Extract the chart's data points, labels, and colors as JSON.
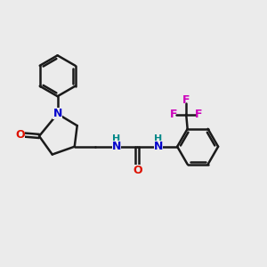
{
  "background_color": "#ebebeb",
  "bond_color": "#1a1a1a",
  "N_color": "#0000cc",
  "O_color": "#dd1100",
  "F_color": "#cc00bb",
  "H_color": "#008888",
  "line_width": 1.8,
  "figsize": [
    3.0,
    3.0
  ],
  "dpi": 100,
  "xlim": [
    0,
    10
  ],
  "ylim": [
    0,
    10
  ]
}
